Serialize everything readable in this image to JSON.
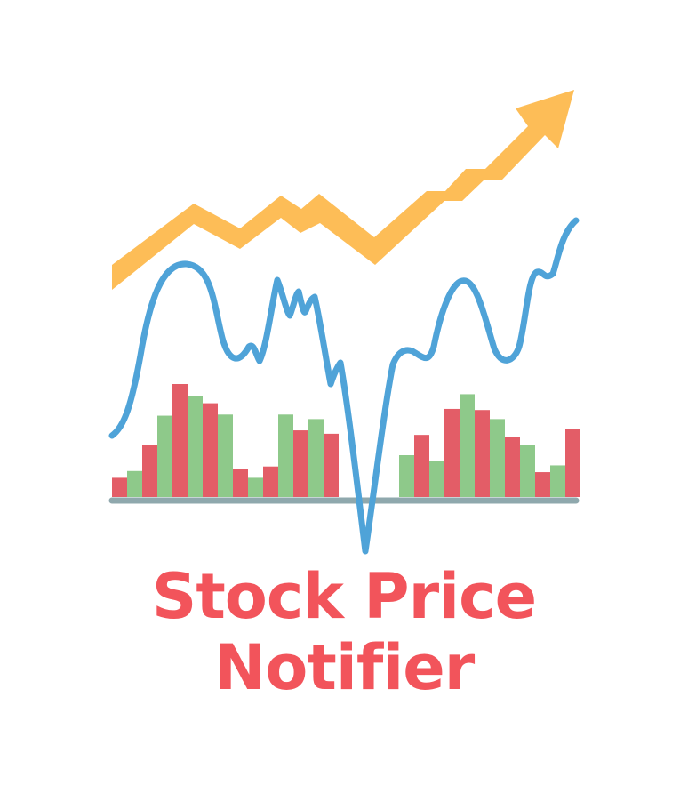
{
  "title": {
    "line1": "Stock Price",
    "line2": "Notifier"
  },
  "colors": {
    "background": "#ffffff",
    "title": "#f2545b",
    "trend_arrow": "#fdbd57",
    "price_line": "#4fa3d8",
    "bar_up": "#8ec98a",
    "bar_down": "#e35d67",
    "baseline": "#8fa8ad"
  },
  "icons": [
    "trend-up-arrow-icon",
    "price-line-icon",
    "volume-bars-icon"
  ],
  "logo": {
    "volume_bars": [
      {
        "direction": "down",
        "value": 0.17
      },
      {
        "direction": "up",
        "value": 0.23
      },
      {
        "direction": "down",
        "value": 0.46
      },
      {
        "direction": "up",
        "value": 0.72
      },
      {
        "direction": "down",
        "value": 1.0
      },
      {
        "direction": "up",
        "value": 0.89
      },
      {
        "direction": "down",
        "value": 0.83
      },
      {
        "direction": "up",
        "value": 0.73
      },
      {
        "direction": "down",
        "value": 0.25
      },
      {
        "direction": "up",
        "value": 0.17
      },
      {
        "direction": "down",
        "value": 0.27
      },
      {
        "direction": "up",
        "value": 0.73
      },
      {
        "direction": "down",
        "value": 0.59
      },
      {
        "direction": "up",
        "value": 0.69
      },
      {
        "direction": "down",
        "value": 0.56
      },
      {
        "direction": "gap",
        "value": 0
      },
      {
        "direction": "gap",
        "value": 0
      },
      {
        "direction": "gap",
        "value": 0
      },
      {
        "direction": "gap",
        "value": 0
      },
      {
        "direction": "up",
        "value": 0.37
      },
      {
        "direction": "down",
        "value": 0.55
      },
      {
        "direction": "up",
        "value": 0.32
      },
      {
        "direction": "down",
        "value": 0.78
      },
      {
        "direction": "up",
        "value": 0.91
      },
      {
        "direction": "down",
        "value": 0.77
      },
      {
        "direction": "up",
        "value": 0.69
      },
      {
        "direction": "down",
        "value": 0.53
      },
      {
        "direction": "up",
        "value": 0.46
      },
      {
        "direction": "down",
        "value": 0.22
      },
      {
        "direction": "up",
        "value": 0.28
      },
      {
        "direction": "down",
        "value": 0.6
      }
    ]
  }
}
